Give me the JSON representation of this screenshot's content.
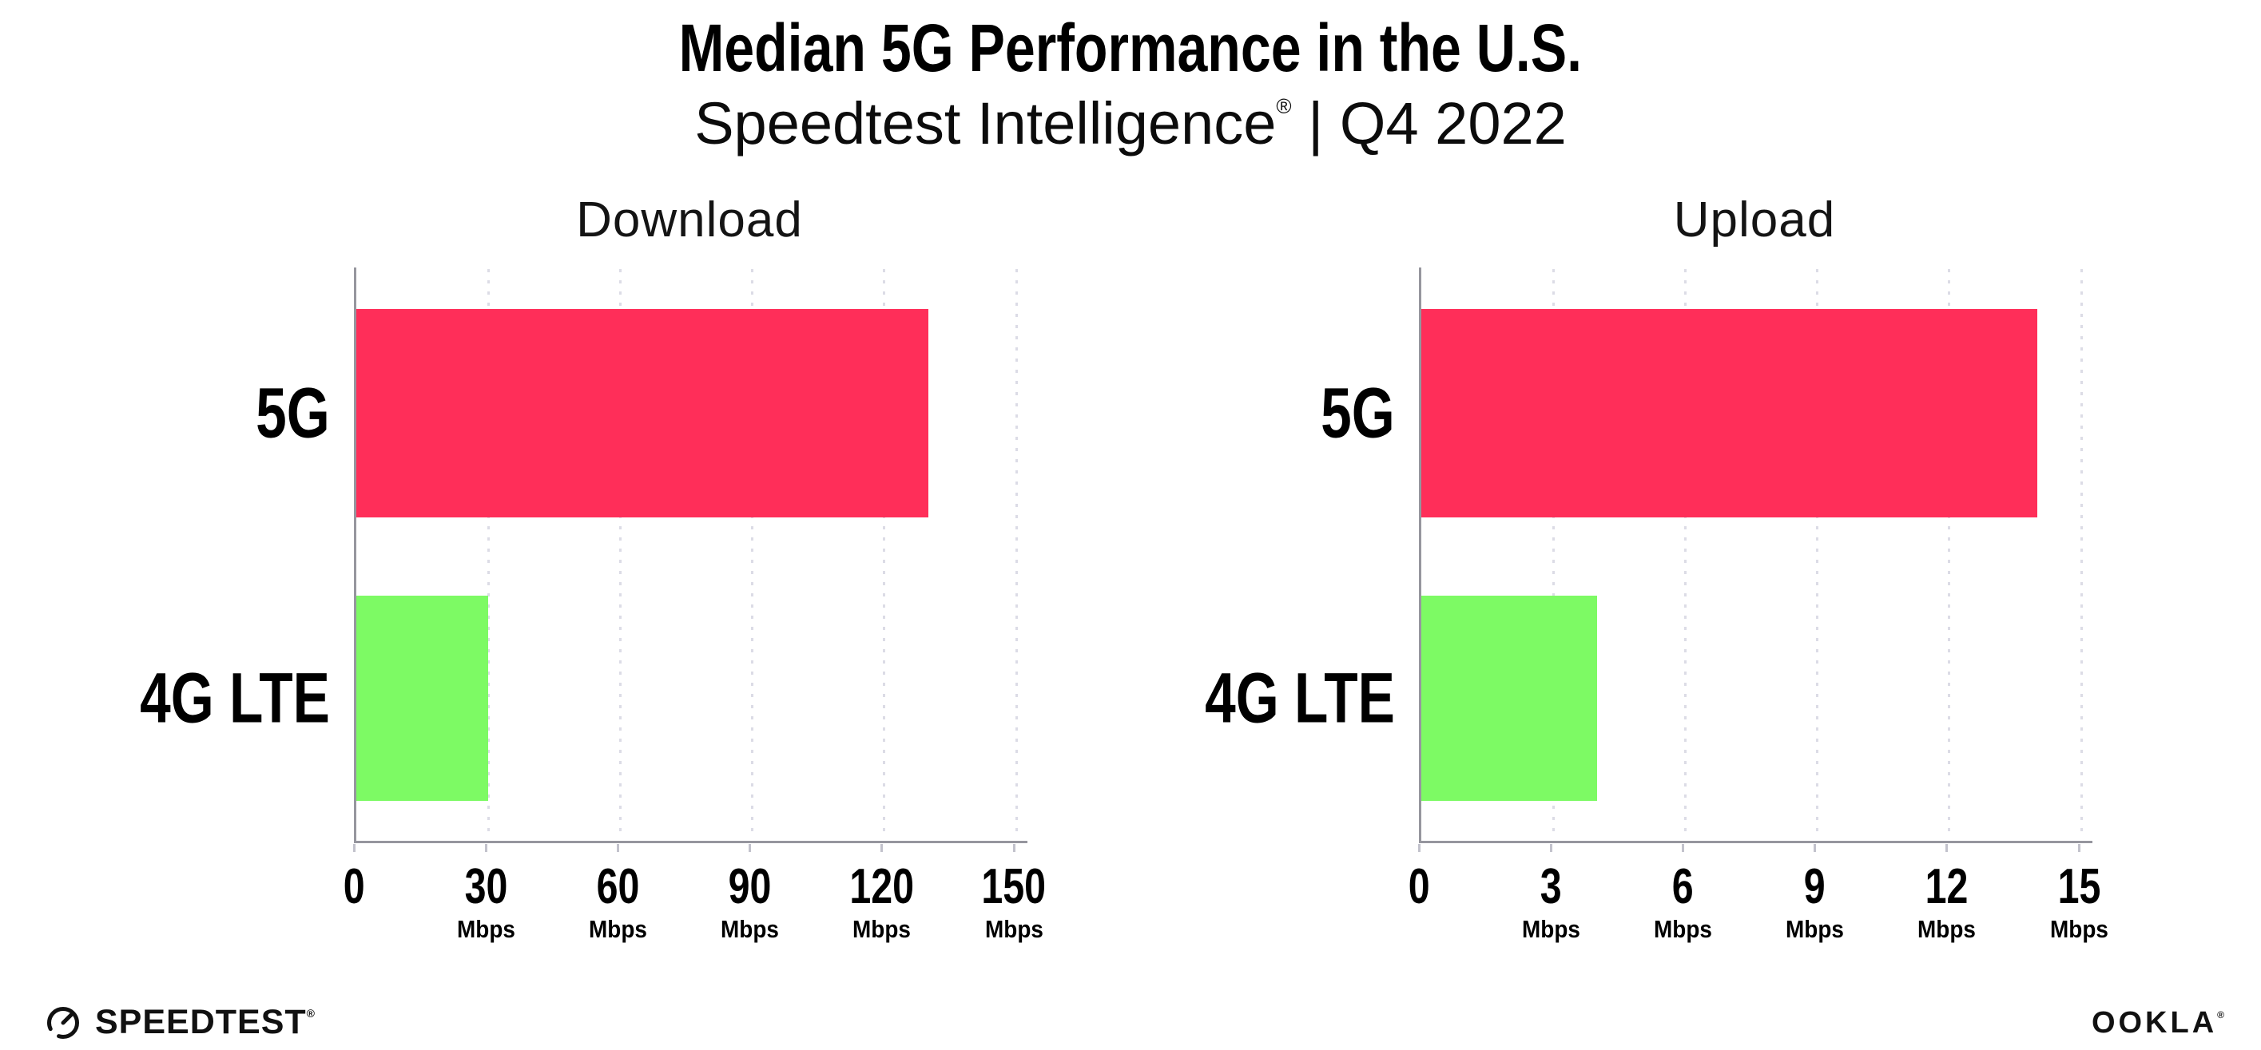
{
  "page": {
    "background": "#ffffff"
  },
  "header": {
    "title": "Median 5G Performance in the U.S.",
    "subtitle_brand": "Speedtest Intelligence",
    "subtitle_reg": "®",
    "subtitle_rest": "| Q4 2022"
  },
  "colors": {
    "bar_5g": "#FF2E59",
    "bar_4g_lte": "#7DFA64",
    "axis": "#96969e",
    "gridline": "#dcdce6",
    "text": "#000000"
  },
  "chart_data": [
    {
      "type": "bar",
      "orientation": "horizontal",
      "title": "Download",
      "categories": [
        "5G",
        "4G LTE"
      ],
      "values": [
        130,
        30
      ],
      "unit": "Mbps",
      "xlim": [
        0,
        150
      ],
      "xticks": [
        0,
        30,
        60,
        90,
        120,
        150
      ],
      "bar_colors": [
        "#FF2E59",
        "#7DFA64"
      ],
      "grid": "vertical-dotted",
      "legend": "none"
    },
    {
      "type": "bar",
      "orientation": "horizontal",
      "title": "Upload",
      "categories": [
        "5G",
        "4G LTE"
      ],
      "values": [
        14,
        4
      ],
      "unit": "Mbps",
      "xlim": [
        0,
        15
      ],
      "xticks": [
        0,
        3,
        6,
        9,
        12,
        15
      ],
      "bar_colors": [
        "#FF2E59",
        "#7DFA64"
      ],
      "grid": "vertical-dotted",
      "legend": "none"
    }
  ],
  "footer": {
    "speedtest_wordmark": "SPEEDTEST",
    "speedtest_reg": "®",
    "ookla_wordmark": "OOKLA",
    "ookla_reg": "®"
  }
}
